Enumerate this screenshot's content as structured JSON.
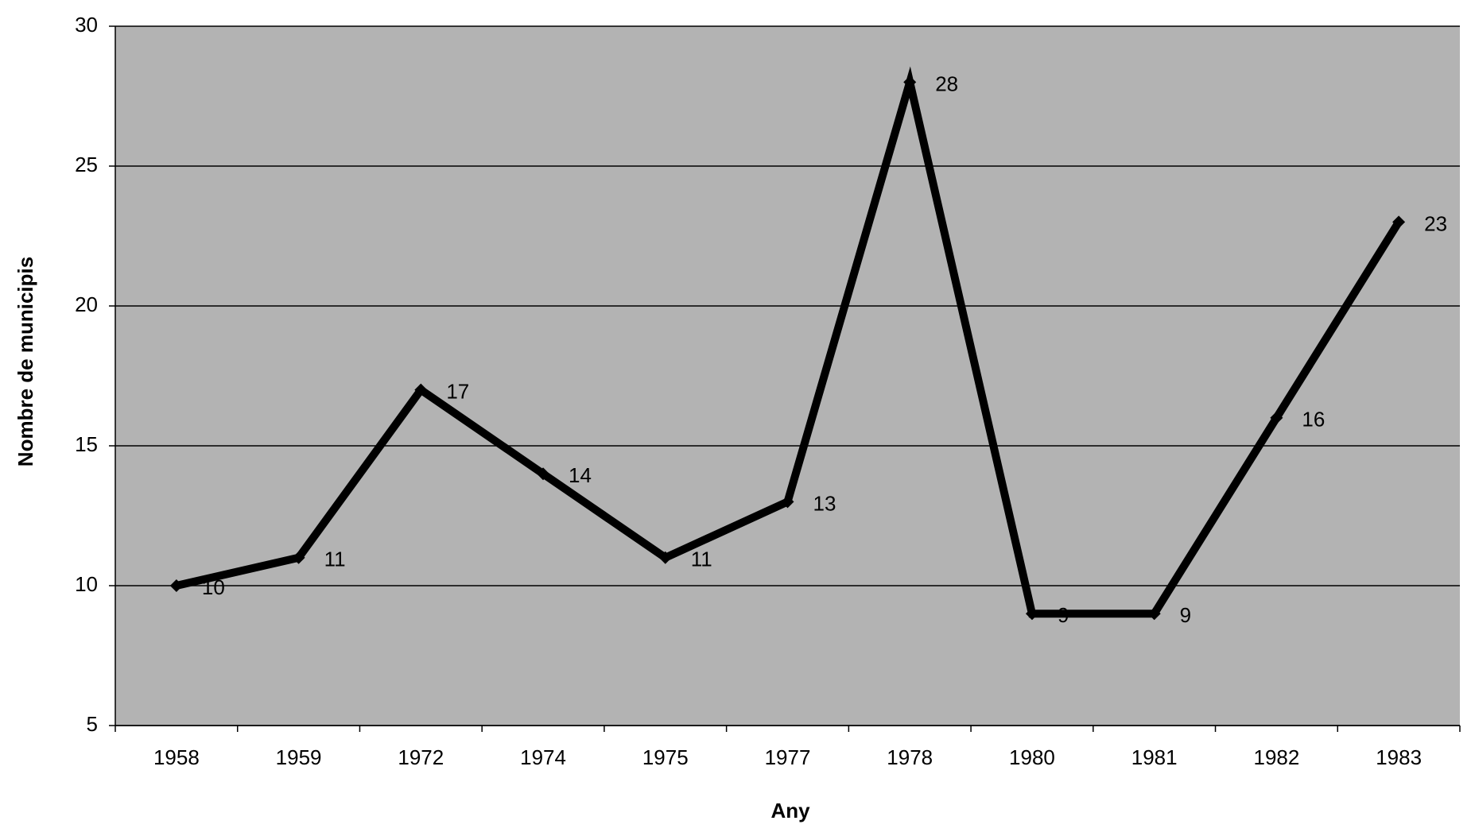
{
  "chart_data": {
    "type": "line",
    "x_label": "Any",
    "y_label": "Nombre de municipis",
    "categories": [
      "1958",
      "1959",
      "1972",
      "1974",
      "1975",
      "1977",
      "1978",
      "1980",
      "1981",
      "1982",
      "1983"
    ],
    "values": [
      10,
      11,
      17,
      14,
      11,
      13,
      28,
      9,
      9,
      16,
      23
    ],
    "color": "#000000",
    "ylim": [
      5,
      30
    ],
    "yticks": [
      5,
      10,
      15,
      20,
      25,
      30
    ],
    "grid": true
  }
}
